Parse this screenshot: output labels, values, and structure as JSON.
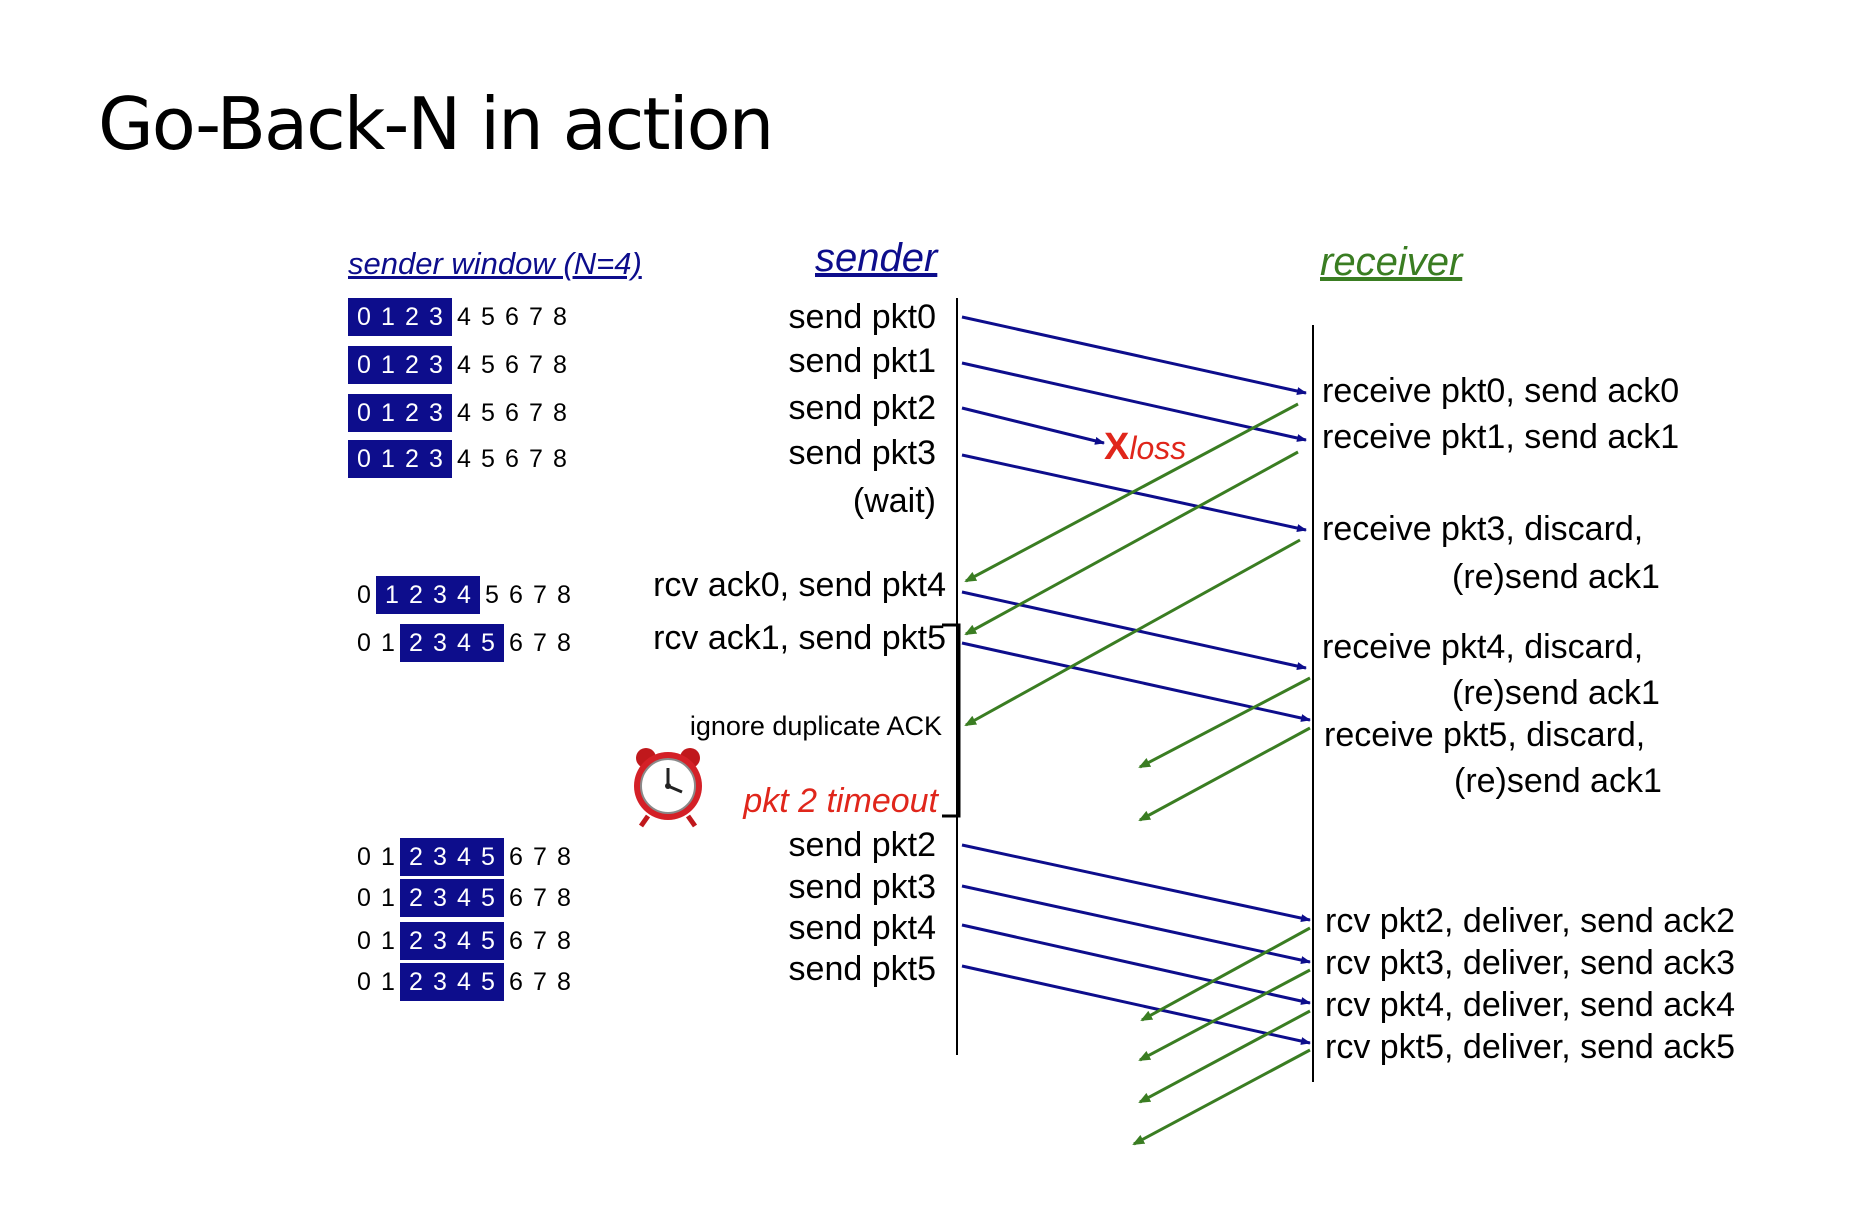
{
  "title": "Go-Back-N in action",
  "headers": {
    "sender_window": "sender window (N=4)",
    "sender": "sender",
    "receiver": "receiver"
  },
  "colors": {
    "blue": "#0d0d8c",
    "green": "#3a7d22",
    "red": "#e0261b"
  },
  "windows": [
    {
      "digits": [
        "0",
        "1",
        "2",
        "3",
        "4",
        "5",
        "6",
        "7",
        "8"
      ],
      "start": 0,
      "end": 3
    },
    {
      "digits": [
        "0",
        "1",
        "2",
        "3",
        "4",
        "5",
        "6",
        "7",
        "8"
      ],
      "start": 0,
      "end": 3
    },
    {
      "digits": [
        "0",
        "1",
        "2",
        "3",
        "4",
        "5",
        "6",
        "7",
        "8"
      ],
      "start": 0,
      "end": 3
    },
    {
      "digits": [
        "0",
        "1",
        "2",
        "3",
        "4",
        "5",
        "6",
        "7",
        "8"
      ],
      "start": 0,
      "end": 3
    },
    {
      "digits": [
        "0",
        "1",
        "2",
        "3",
        "4",
        "5",
        "6",
        "7",
        "8"
      ],
      "start": 1,
      "end": 4
    },
    {
      "digits": [
        "0",
        "1",
        "2",
        "3",
        "4",
        "5",
        "6",
        "7",
        "8"
      ],
      "start": 2,
      "end": 5
    },
    {
      "digits": [
        "0",
        "1",
        "2",
        "3",
        "4",
        "5",
        "6",
        "7",
        "8"
      ],
      "start": 2,
      "end": 5
    },
    {
      "digits": [
        "0",
        "1",
        "2",
        "3",
        "4",
        "5",
        "6",
        "7",
        "8"
      ],
      "start": 2,
      "end": 5
    },
    {
      "digits": [
        "0",
        "1",
        "2",
        "3",
        "4",
        "5",
        "6",
        "7",
        "8"
      ],
      "start": 2,
      "end": 5
    },
    {
      "digits": [
        "0",
        "1",
        "2",
        "3",
        "4",
        "5",
        "6",
        "7",
        "8"
      ],
      "start": 2,
      "end": 5
    }
  ],
  "sender_events": [
    "send  pkt0",
    "send  pkt1",
    "send  pkt2",
    "send  pkt3",
    "(wait)",
    "rcv ack0, send pkt4",
    "rcv ack1, send pkt5",
    "ignore duplicate ACK",
    "pkt 2 timeout",
    "send  pkt2",
    "send  pkt3",
    "send  pkt4",
    "send  pkt5"
  ],
  "receiver_events": [
    "receive pkt0, send ack0",
    "receive pkt1, send ack1",
    "receive pkt3, discard,",
    "(re)send ack1",
    "receive pkt4, discard,",
    "(re)send ack1",
    "receive pkt5, discard,",
    "(re)send ack1",
    "rcv pkt2, deliver, send ack2",
    "rcv pkt3, deliver, send ack3",
    "rcv pkt4, deliver, send ack4",
    "rcv pkt5, deliver, send ack5"
  ],
  "loss": {
    "mark": "X",
    "text": "loss"
  },
  "timeout_icon": "alarm-clock-icon"
}
